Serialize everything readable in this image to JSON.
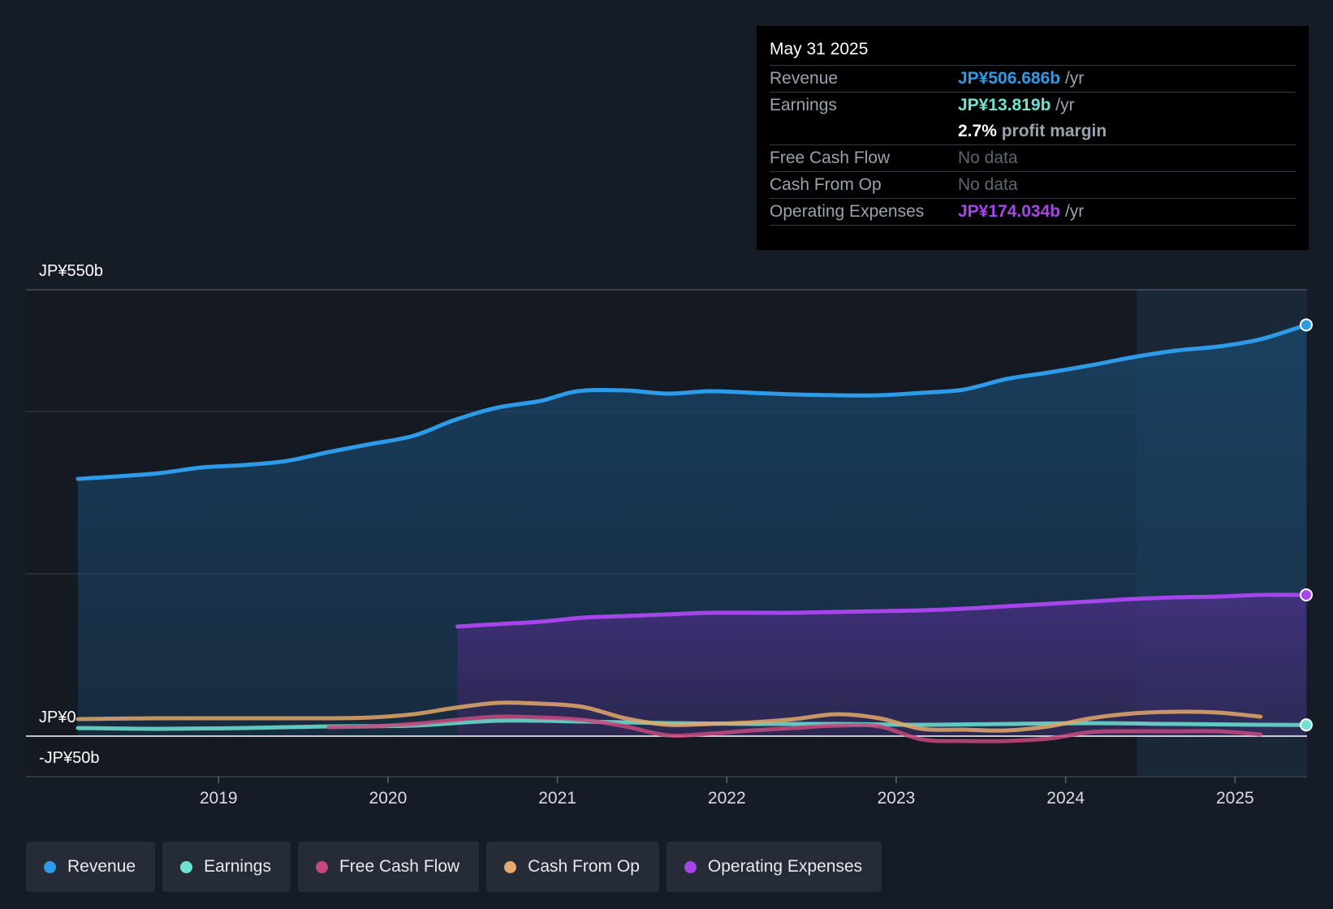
{
  "tooltip": {
    "date": "May 31 2025",
    "revenue": {
      "label": "Revenue",
      "value": "JP¥506.686b",
      "unit": "/yr"
    },
    "earnings": {
      "label": "Earnings",
      "value": "JP¥13.819b",
      "unit": "/yr"
    },
    "margin": {
      "value": "2.7%",
      "label": "profit margin"
    },
    "fcf": {
      "label": "Free Cash Flow",
      "value": "No data"
    },
    "cfo": {
      "label": "Cash From Op",
      "value": "No data"
    },
    "opex": {
      "label": "Operating Expenses",
      "value": "JP¥174.034b",
      "unit": "/yr"
    }
  },
  "legend": [
    {
      "label": "Revenue",
      "color": "#2d9be8"
    },
    {
      "label": "Earnings",
      "color": "#6ee3d2"
    },
    {
      "label": "Free Cash Flow",
      "color": "#c4497e"
    },
    {
      "label": "Cash From Op",
      "color": "#e3a86a"
    },
    {
      "label": "Operating Expenses",
      "color": "#a646ea"
    }
  ],
  "chart_data": {
    "type": "area",
    "title": "",
    "xlabel": "",
    "ylabel": "",
    "y_label_top": "JP¥550b",
    "y_label_zero": "JP¥0",
    "y_label_bottom": "-JP¥50b",
    "ylim": [
      -50,
      550
    ],
    "xlim": [
      2018.0,
      2025.42
    ],
    "x_ticks": [
      2019,
      2020,
      2021,
      2022,
      2023,
      2024,
      2025
    ],
    "x_tick_labels": [
      "2019",
      "2020",
      "2021",
      "2022",
      "2023",
      "2024",
      "2025"
    ],
    "forecast_start": 2024.42,
    "series": [
      {
        "name": "Revenue",
        "color": "#2d9be8",
        "x": [
          2018.17,
          2018.4,
          2018.65,
          2018.9,
          2019.15,
          2019.4,
          2019.65,
          2019.9,
          2020.15,
          2020.4,
          2020.65,
          2020.9,
          2021.12,
          2021.4,
          2021.65,
          2021.9,
          2022.15,
          2022.4,
          2022.65,
          2022.9,
          2023.15,
          2023.4,
          2023.65,
          2023.9,
          2024.15,
          2024.4,
          2024.65,
          2024.9,
          2025.15,
          2025.42
        ],
        "values": [
          317,
          320,
          324,
          331,
          334,
          339,
          350,
          360,
          370,
          390,
          405,
          413,
          425,
          426,
          422,
          425,
          423,
          421,
          420,
          420,
          423,
          427,
          440,
          448,
          457,
          467,
          475,
          480,
          489,
          506.686
        ]
      },
      {
        "name": "Earnings",
        "color": "#6ee3d2",
        "x": [
          2018.17,
          2018.65,
          2019.15,
          2019.65,
          2020.15,
          2020.65,
          2021.15,
          2021.65,
          2022.15,
          2022.65,
          2023.15,
          2023.65,
          2024.15,
          2024.65,
          2025.15,
          2025.42
        ],
        "values": [
          10,
          9,
          10,
          12,
          13,
          19,
          18,
          16,
          15,
          15,
          14,
          15,
          16,
          15,
          14,
          13.819
        ]
      },
      {
        "name": "Free Cash Flow",
        "color": "#c4497e",
        "x": [
          2019.65,
          2019.9,
          2020.15,
          2020.4,
          2020.65,
          2020.9,
          2021.15,
          2021.4,
          2021.65,
          2021.9,
          2022.15,
          2022.4,
          2022.65,
          2022.9,
          2023.15,
          2023.4,
          2023.65,
          2023.9,
          2024.15,
          2024.4,
          2024.65,
          2024.9,
          2025.15
        ],
        "values": [
          11,
          12,
          15,
          20,
          24,
          23,
          20,
          12,
          1,
          3,
          7,
          10,
          13,
          12,
          -4,
          -6,
          -6,
          -3,
          5,
          6,
          6,
          6,
          2
        ]
      },
      {
        "name": "Cash From Op",
        "color": "#e3a86a",
        "x": [
          2018.17,
          2018.65,
          2019.15,
          2019.65,
          2019.9,
          2020.15,
          2020.4,
          2020.65,
          2020.9,
          2021.15,
          2021.4,
          2021.65,
          2021.9,
          2022.15,
          2022.4,
          2022.65,
          2022.9,
          2023.15,
          2023.4,
          2023.65,
          2023.9,
          2024.15,
          2024.4,
          2024.65,
          2024.9,
          2025.15
        ],
        "values": [
          21,
          22,
          22,
          22,
          23,
          27,
          35,
          41,
          40,
          36,
          22,
          14,
          15,
          17,
          21,
          27,
          22,
          9,
          8,
          7,
          12,
          22,
          28,
          30,
          29,
          24
        ]
      },
      {
        "name": "Operating Expenses",
        "color": "#a646ea",
        "x": [
          2020.41,
          2020.65,
          2020.9,
          2021.15,
          2021.4,
          2021.65,
          2021.9,
          2022.15,
          2022.4,
          2022.65,
          2022.9,
          2023.15,
          2023.4,
          2023.65,
          2023.9,
          2024.15,
          2024.4,
          2024.65,
          2024.9,
          2025.15,
          2025.42
        ],
        "values": [
          135,
          138,
          141,
          146,
          148,
          150,
          152,
          152,
          152,
          153,
          154,
          155,
          157,
          160,
          163,
          166,
          169,
          171,
          172,
          174,
          174.034
        ]
      }
    ]
  }
}
